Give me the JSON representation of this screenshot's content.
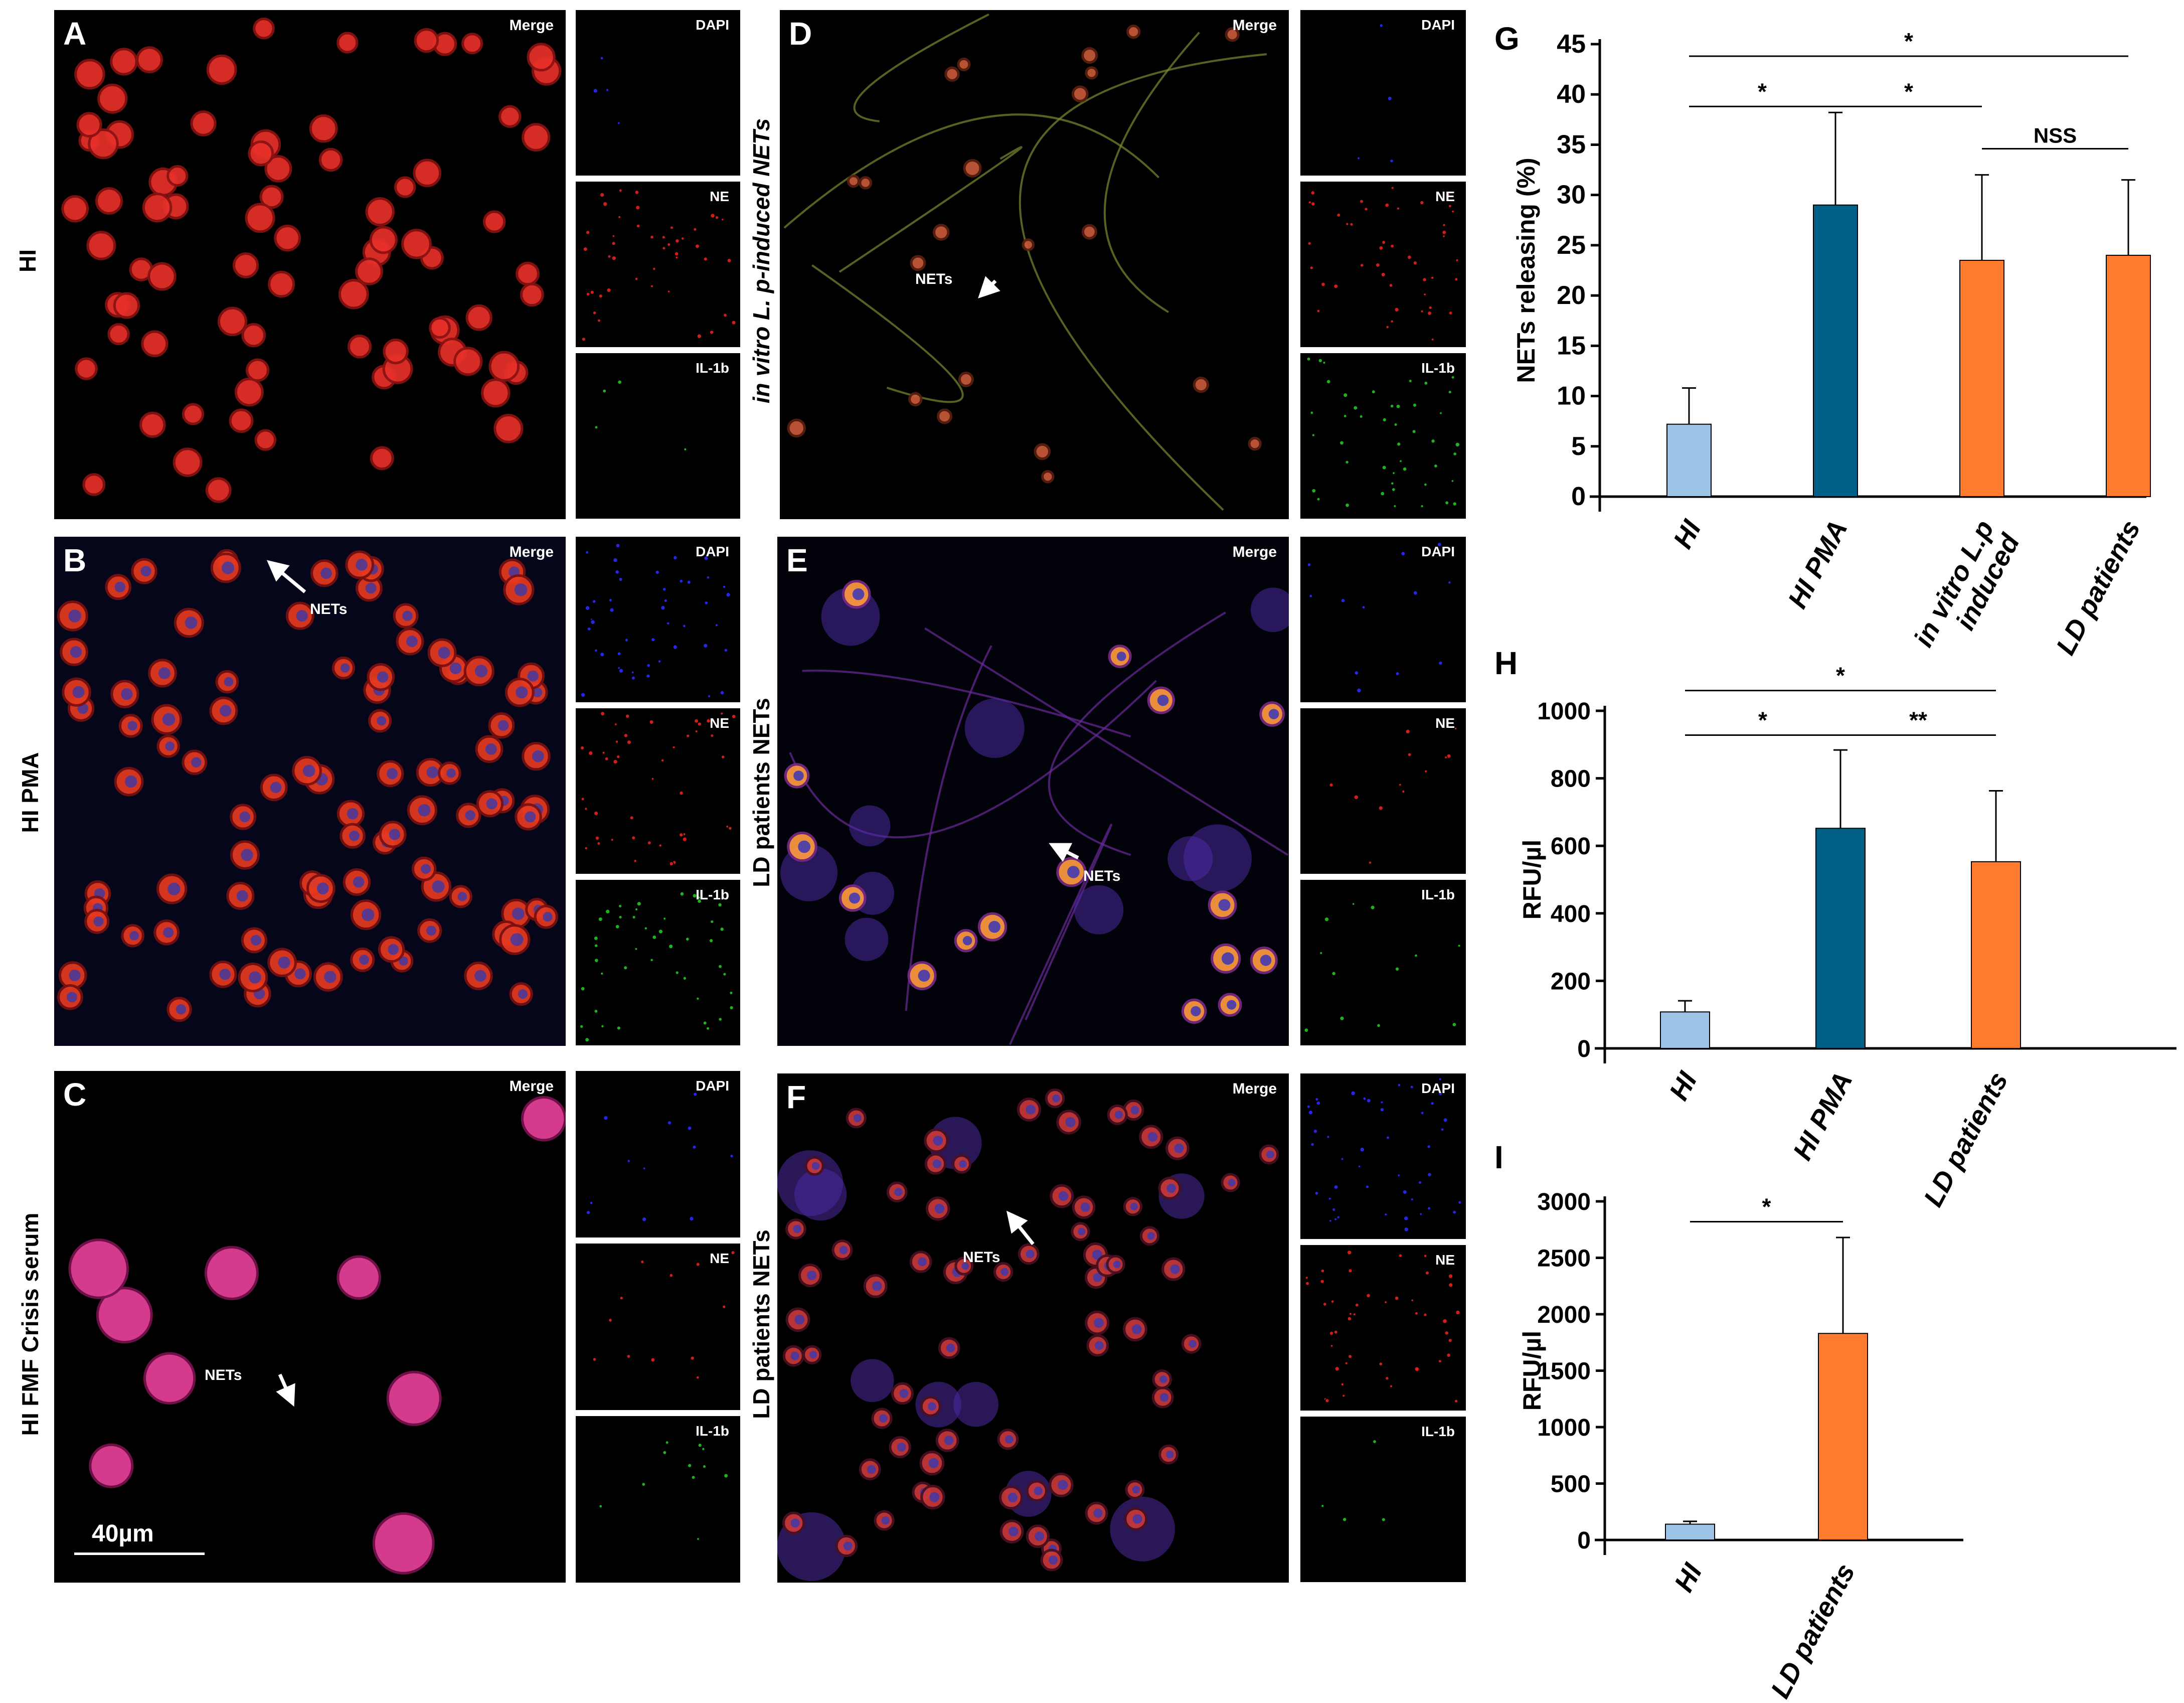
{
  "micro": {
    "panels": [
      {
        "letter": "A",
        "row_label": "HI",
        "italic": false,
        "merge": "Merge",
        "dapi": "DAPI",
        "ne": "NE",
        "il": "IL-1b",
        "nets": ""
      },
      {
        "letter": "B",
        "row_label": "HI  PMA",
        "italic": false,
        "merge": "Merge",
        "dapi": "DAPI",
        "ne": "NE",
        "il": "IL-1b",
        "nets": "NETs"
      },
      {
        "letter": "C",
        "row_label": "HI FMF Crisis serum",
        "italic": false,
        "merge": "Merge",
        "dapi": "DAPI",
        "ne": "NE",
        "il": "IL-1b",
        "nets": "NETs",
        "scale": "40µm"
      },
      {
        "letter": "D",
        "row_label": "in vitro L. p-induced NETs",
        "italic": true,
        "merge": "Merge",
        "dapi": "DAPI",
        "ne": "NE",
        "il": "IL-1b",
        "nets": "NETs"
      },
      {
        "letter": "E",
        "row_label": "LD patients NETs",
        "italic": false,
        "merge": "Merge",
        "dapi": "DAPI",
        "ne": "NE",
        "il": "IL-1b",
        "nets": "NETs"
      },
      {
        "letter": "F",
        "row_label": "LD patients NETs",
        "italic": false,
        "merge": "Merge",
        "dapi": "DAPI",
        "ne": "NE",
        "il": "IL-1b",
        "nets": "NETs"
      }
    ]
  },
  "chart_data": [
    {
      "letter": "G",
      "type": "bar",
      "ylabel": "NETs releasing (%)",
      "ylim": [
        0,
        45
      ],
      "yticks": [
        0,
        5,
        10,
        15,
        20,
        25,
        30,
        35,
        40,
        45
      ],
      "categories": [
        "HI",
        "HI PMA",
        "in vitro L.p induced",
        "LD patients"
      ],
      "category_lines": [
        [
          "HI"
        ],
        [
          "HI PMA"
        ],
        [
          "in vitro L.p",
          "induced"
        ],
        [
          "LD patients"
        ]
      ],
      "values": [
        7.2,
        29.0,
        23.5,
        24.0
      ],
      "errors": [
        3.6,
        9.2,
        8.5,
        7.5
      ],
      "colors": [
        "#9DC3E6",
        "#005F84",
        "#FF7C2E",
        "#FF7C2E"
      ],
      "significance": [
        {
          "from": 0,
          "to": 1,
          "label": "*",
          "y": 38.8
        },
        {
          "from": 1,
          "to": 2,
          "label": "*",
          "y": 38.8
        },
        {
          "from": 2,
          "to": 3,
          "label": "NSS",
          "y": 34.6
        },
        {
          "from": 0,
          "to": 3,
          "label": "*",
          "y": 43.8
        }
      ]
    },
    {
      "letter": "H",
      "type": "bar",
      "ylabel": "RFU/µl",
      "ylim": [
        0,
        1000
      ],
      "yticks": [
        0,
        200,
        400,
        600,
        800,
        1000
      ],
      "categories": [
        "HI",
        "HI PMA",
        "LD patients"
      ],
      "category_lines": [
        [
          "HI"
        ],
        [
          "HI PMA"
        ],
        [
          "LD patients"
        ]
      ],
      "values": [
        108,
        652,
        553
      ],
      "errors": [
        33,
        232,
        210
      ],
      "colors": [
        "#9DC3E6",
        "#005F84",
        "#FF7C2E"
      ],
      "significance": [
        {
          "from": 0,
          "to": 1,
          "label": "*",
          "y": 928
        },
        {
          "from": 1,
          "to": 2,
          "label": "**",
          "y": 928
        },
        {
          "from": 0,
          "to": 2,
          "label": "*",
          "y": 1060
        }
      ]
    },
    {
      "letter": "I",
      "type": "bar",
      "ylabel": "RFU/µl",
      "ylim": [
        0,
        3000
      ],
      "yticks": [
        0,
        500,
        1000,
        1500,
        2000,
        2500,
        3000
      ],
      "categories": [
        "HI",
        "LD patients"
      ],
      "category_lines": [
        [
          "HI"
        ],
        [
          "LD patients"
        ]
      ],
      "values": [
        140,
        1830
      ],
      "errors": [
        25,
        850
      ],
      "colors": [
        "#9DC3E6",
        "#FF7C2E"
      ],
      "significance": [
        {
          "from": 0,
          "to": 1,
          "label": "*",
          "y": 2820
        }
      ]
    }
  ]
}
